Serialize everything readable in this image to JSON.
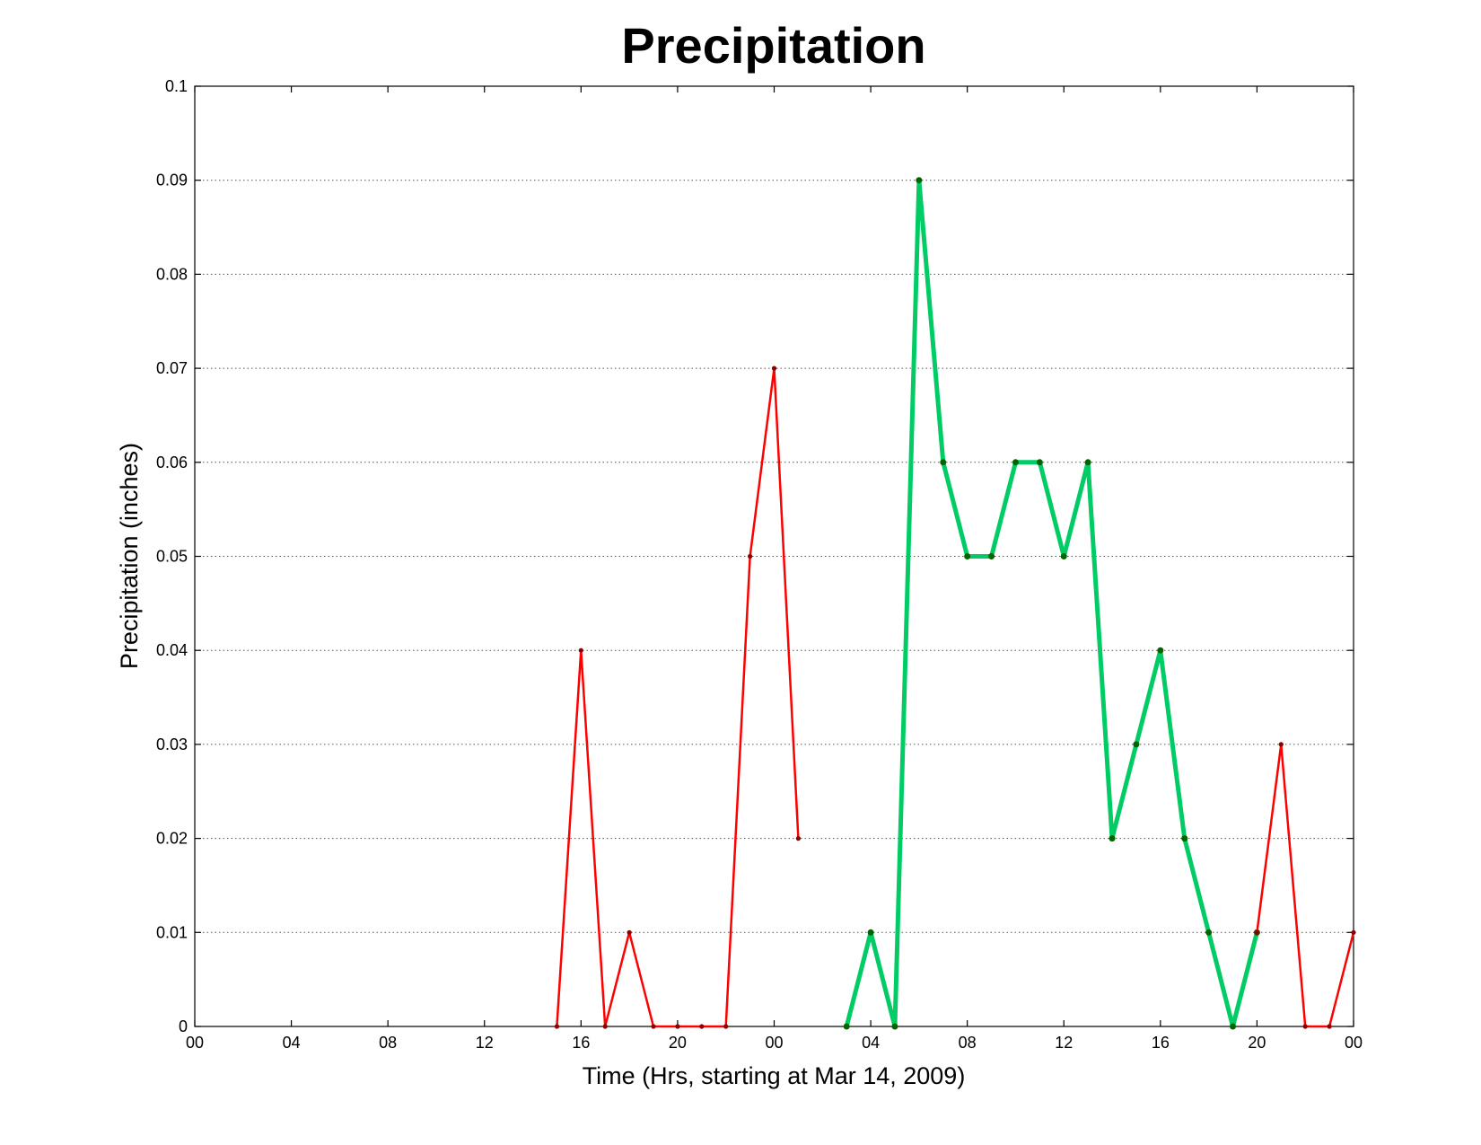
{
  "chart_data": {
    "type": "line",
    "title": "Precipitation",
    "xlabel": "Time (Hrs, starting at Mar 14, 2009)",
    "ylabel": "Precipitation (inches)",
    "ylim": [
      0,
      0.1
    ],
    "xlim_hours": [
      0,
      48
    ],
    "grid": "horizontal-dotted",
    "x_ticks": [
      {
        "hour": 0,
        "label": "00"
      },
      {
        "hour": 4,
        "label": "04"
      },
      {
        "hour": 8,
        "label": "08"
      },
      {
        "hour": 12,
        "label": "12"
      },
      {
        "hour": 16,
        "label": "16"
      },
      {
        "hour": 20,
        "label": "20"
      },
      {
        "hour": 24,
        "label": "00"
      },
      {
        "hour": 28,
        "label": "04"
      },
      {
        "hour": 32,
        "label": "08"
      },
      {
        "hour": 36,
        "label": "12"
      },
      {
        "hour": 40,
        "label": "16"
      },
      {
        "hour": 44,
        "label": "20"
      },
      {
        "hour": 48,
        "label": "00"
      }
    ],
    "y_ticks": [
      {
        "value": 0,
        "label": "0"
      },
      {
        "value": 0.01,
        "label": "0.01"
      },
      {
        "value": 0.02,
        "label": "0.02"
      },
      {
        "value": 0.03,
        "label": "0.03"
      },
      {
        "value": 0.04,
        "label": "0.04"
      },
      {
        "value": 0.05,
        "label": "0.05"
      },
      {
        "value": 0.06,
        "label": "0.06"
      },
      {
        "value": 0.07,
        "label": "0.07"
      },
      {
        "value": 0.08,
        "label": "0.08"
      },
      {
        "value": 0.09,
        "label": "0.09"
      },
      {
        "value": 0.1,
        "label": "0.1"
      }
    ],
    "series": [
      {
        "color": "#ff0000",
        "marker_color": "#8b0000",
        "style": "thin",
        "points": [
          [
            15,
            0
          ],
          [
            16,
            0.04
          ],
          [
            17,
            0
          ],
          [
            18,
            0.01
          ],
          [
            19,
            0
          ],
          [
            20,
            0
          ],
          [
            21,
            0
          ],
          [
            22,
            0
          ],
          [
            23,
            0.05
          ],
          [
            24,
            0.07
          ],
          [
            25,
            0.02
          ]
        ]
      },
      {
        "color": "#00cc66",
        "marker_color": "#006400",
        "style": "thick",
        "points": [
          [
            27,
            0
          ],
          [
            28,
            0.01
          ],
          [
            29,
            0
          ],
          [
            30,
            0.09
          ],
          [
            31,
            0.06
          ],
          [
            32,
            0.05
          ],
          [
            33,
            0.05
          ],
          [
            34,
            0.06
          ],
          [
            35,
            0.06
          ],
          [
            36,
            0.05
          ],
          [
            37,
            0.06
          ],
          [
            38,
            0.02
          ],
          [
            39,
            0.03
          ],
          [
            40,
            0.04
          ],
          [
            41,
            0.02
          ],
          [
            42,
            0.01
          ],
          [
            43,
            0
          ],
          [
            44,
            0.01
          ]
        ]
      },
      {
        "color": "#ff0000",
        "marker_color": "#8b0000",
        "style": "thin",
        "points": [
          [
            44,
            0.01
          ],
          [
            45,
            0.03
          ],
          [
            46,
            0
          ],
          [
            47,
            0
          ],
          [
            48,
            0.01
          ]
        ]
      }
    ]
  }
}
